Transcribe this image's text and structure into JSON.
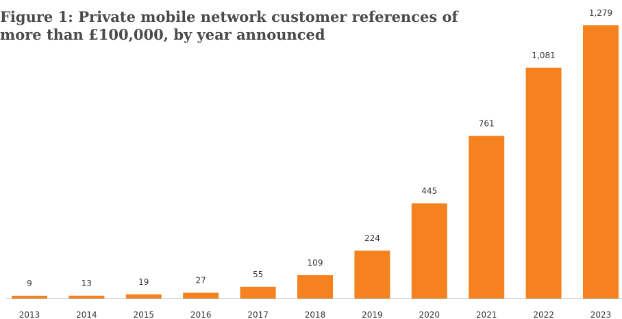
{
  "chart_data": {
    "type": "bar",
    "title": "Figure 1: Private mobile network customer references of more than £100,000, by year announced",
    "categories": [
      "2013",
      "2014",
      "2015",
      "2016",
      "2017",
      "2018",
      "2019",
      "2020",
      "2021",
      "2022",
      "2023"
    ],
    "values": [
      9,
      13,
      19,
      27,
      55,
      109,
      224,
      445,
      761,
      1081,
      1279
    ],
    "value_labels": [
      "9",
      "13",
      "19",
      "27",
      "55",
      "109",
      "224",
      "445",
      "761",
      "1,081",
      "1,279"
    ],
    "xlabel": "",
    "ylabel": "",
    "ylim": [
      0,
      1279
    ],
    "grid": false,
    "legend": "none",
    "bar_color": "#f5821f",
    "axis_color": "#bfbfbf"
  }
}
